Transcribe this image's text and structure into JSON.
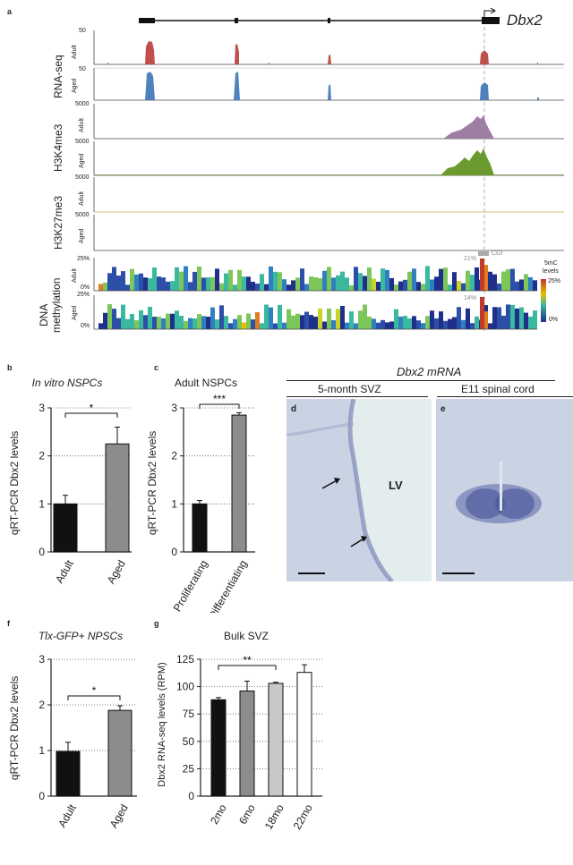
{
  "panels": {
    "a": "a",
    "b": "b",
    "c": "c",
    "d": "d",
    "e": "e",
    "f": "f",
    "g": "g"
  },
  "gene_name": "Dbx2",
  "track_labels": {
    "rnaseq": "RNA-seq",
    "h3k4": "H3K4me3",
    "h3k27": "H3K27me3",
    "dna1": "DNA",
    "dna2": "methylation",
    "adult": "Adult",
    "aged": "Aged",
    "cgi": "CGI",
    "fivemc": "5mC",
    "levels": "levels",
    "pct25": "25%",
    "pct0": "0%",
    "pct21": "21%",
    "pct14": "14%"
  },
  "track_scales": {
    "rna_adult": "50",
    "rna_aged": "50",
    "k4_adult": "5000",
    "k4_aged": "5000",
    "k27_adult": "5000",
    "k27_aged": "5000",
    "meth_adult": "25%",
    "meth_aged": "25%"
  },
  "colors": {
    "rna_adult": "#c0504d",
    "rna_aged": "#4f81bd",
    "k4_adult": "#9e7ea3",
    "k4_aged": "#6b9a2f",
    "k27": "#d4a34a",
    "bar_black": "#111111",
    "bar_grey": "#8c8c8c",
    "bar_light": "#c8c8c8",
    "micro_bg": "#c9d3e3",
    "micro_lv": "#e4eded"
  },
  "insitu": {
    "header": "Dbx2 mRNA",
    "d_label": "5-month SVZ",
    "e_label": "E11 spinal cord",
    "lv": "LV"
  },
  "chart_data": [
    {
      "panel": "b",
      "type": "bar",
      "title": "In vitro NSPCs",
      "ylabel": "qRT-PCR Dbx2 levels",
      "categories": [
        "Adult",
        "Aged"
      ],
      "values": [
        1.0,
        2.25
      ],
      "errors": [
        0.18,
        0.35
      ],
      "ylim": [
        0,
        3
      ],
      "yticks": [
        "0",
        "1",
        "2",
        "3"
      ],
      "significance": "*"
    },
    {
      "panel": "c",
      "type": "bar",
      "title": "Adult NSPCs",
      "ylabel": "qRT-PCR Dbx2 levels",
      "categories": [
        "Proliferating",
        "Differentiating"
      ],
      "values": [
        1.0,
        2.85
      ],
      "errors": [
        0.07,
        0.05
      ],
      "ylim": [
        0,
        3
      ],
      "yticks": [
        "0",
        "1",
        "2",
        "3"
      ],
      "significance": "***"
    },
    {
      "panel": "f",
      "type": "bar",
      "title": "Tlx-GFP+ NPSCs",
      "ylabel": "qRT-PCR Dbx2 levels",
      "categories": [
        "Adult",
        "Aged"
      ],
      "values": [
        0.98,
        1.88
      ],
      "errors": [
        0.2,
        0.1
      ],
      "ylim": [
        0,
        3
      ],
      "yticks": [
        "0",
        "1",
        "2",
        "3"
      ],
      "significance": "*"
    },
    {
      "panel": "g",
      "type": "bar",
      "title": "Bulk SVZ",
      "ylabel": "Dbx2 RNA-seq levels (RPM)",
      "categories": [
        "2mo",
        "6mo",
        "18mo",
        "22mo"
      ],
      "values": [
        88,
        96,
        103,
        113
      ],
      "errors": [
        2,
        9,
        1,
        7
      ],
      "ylim": [
        0,
        125
      ],
      "yticks": [
        "0",
        "25",
        "50",
        "75",
        "100",
        "125"
      ],
      "significance": "**"
    }
  ]
}
